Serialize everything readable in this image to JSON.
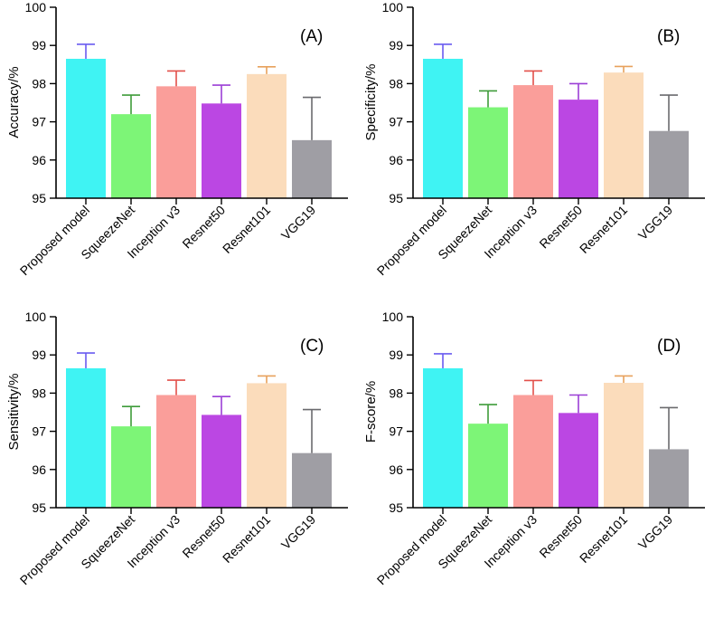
{
  "chart_data": [
    {
      "type": "bar",
      "panel_label": "(A)",
      "ylabel": "Accuracy/%",
      "ylim": [
        95,
        100
      ],
      "yticks": [
        "95",
        "96",
        "97",
        "98",
        "99",
        "100"
      ],
      "categories": [
        "Proposed model",
        "SqueezeNet",
        "Inception v3",
        "Resnet50",
        "Resnet101",
        "VGG19"
      ],
      "values": [
        98.65,
        97.2,
        97.93,
        97.48,
        98.25,
        96.52
      ],
      "errors": [
        0.38,
        0.5,
        0.4,
        0.48,
        0.19,
        1.12
      ],
      "colors": [
        "#3ff3f3",
        "#7df577",
        "#fa9e9a",
        "#bb47e3",
        "#fbdcbb",
        "#9f9ea4"
      ],
      "error_colors": [
        "#6a5cf0",
        "#3f9c3a",
        "#e2504a",
        "#9b3fd6",
        "#e8a15c",
        "#6a6a6e"
      ]
    },
    {
      "type": "bar",
      "panel_label": "(B)",
      "ylabel": "Specificity/%",
      "ylim": [
        95,
        100
      ],
      "yticks": [
        "95",
        "96",
        "97",
        "98",
        "99",
        "100"
      ],
      "categories": [
        "Proposed model",
        "SqueezeNet",
        "Inception v3",
        "Resnet50",
        "Resnet101",
        "VGG19"
      ],
      "values": [
        98.65,
        97.38,
        97.96,
        97.58,
        98.29,
        96.76
      ],
      "errors": [
        0.38,
        0.43,
        0.37,
        0.42,
        0.16,
        0.94
      ],
      "colors": [
        "#3ff3f3",
        "#7df577",
        "#fa9e9a",
        "#bb47e3",
        "#fbdcbb",
        "#9f9ea4"
      ],
      "error_colors": [
        "#6a5cf0",
        "#3f9c3a",
        "#e2504a",
        "#9b3fd6",
        "#e8a15c",
        "#6a6a6e"
      ]
    },
    {
      "type": "bar",
      "panel_label": "(C)",
      "ylabel": "Sensitivity/%",
      "ylim": [
        95,
        100
      ],
      "yticks": [
        "95",
        "96",
        "97",
        "98",
        "99",
        "100"
      ],
      "categories": [
        "Proposed model",
        "SqueezeNet",
        "Inception v3",
        "Resnet50",
        "Resnet101",
        "VGG19"
      ],
      "values": [
        98.65,
        97.13,
        97.95,
        97.43,
        98.26,
        96.43
      ],
      "errors": [
        0.4,
        0.52,
        0.39,
        0.48,
        0.19,
        1.14
      ],
      "colors": [
        "#3ff3f3",
        "#7df577",
        "#fa9e9a",
        "#bb47e3",
        "#fbdcbb",
        "#9f9ea4"
      ],
      "error_colors": [
        "#6a5cf0",
        "#3f9c3a",
        "#e2504a",
        "#9b3fd6",
        "#e8a15c",
        "#6a6a6e"
      ]
    },
    {
      "type": "bar",
      "panel_label": "(D)",
      "ylabel": "F-score/%",
      "ylim": [
        95,
        100
      ],
      "yticks": [
        "95",
        "96",
        "97",
        "98",
        "99",
        "100"
      ],
      "categories": [
        "Proposed model",
        "SqueezeNet",
        "Inception v3",
        "Resnet50",
        "Resnet101",
        "VGG19"
      ],
      "values": [
        98.65,
        97.2,
        97.95,
        97.48,
        98.27,
        96.53
      ],
      "errors": [
        0.38,
        0.5,
        0.38,
        0.47,
        0.18,
        1.09
      ],
      "colors": [
        "#3ff3f3",
        "#7df577",
        "#fa9e9a",
        "#bb47e3",
        "#fbdcbb",
        "#9f9ea4"
      ],
      "error_colors": [
        "#6a5cf0",
        "#3f9c3a",
        "#e2504a",
        "#9b3fd6",
        "#e8a15c",
        "#6a6a6e"
      ]
    }
  ]
}
